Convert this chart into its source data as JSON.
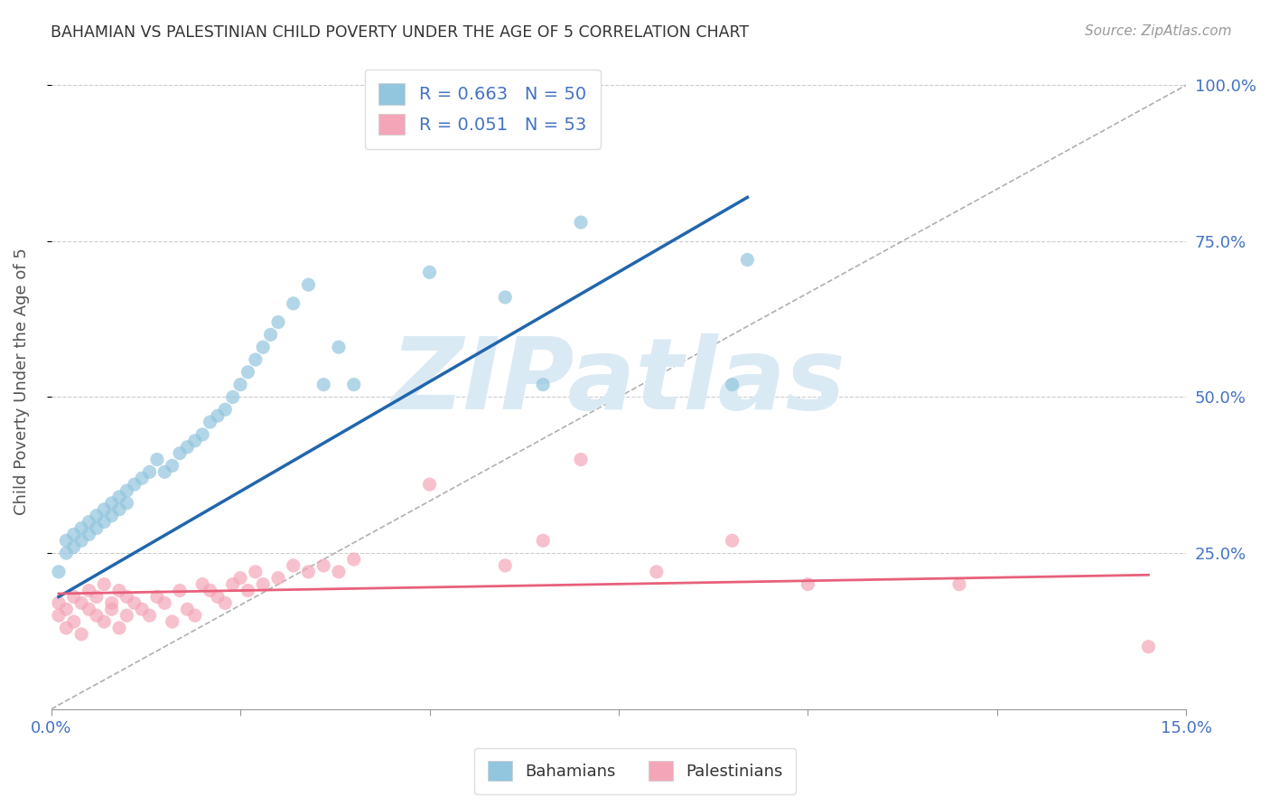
{
  "title": "BAHAMIAN VS PALESTINIAN CHILD POVERTY UNDER THE AGE OF 5 CORRELATION CHART",
  "source": "Source: ZipAtlas.com",
  "ylabel": "Child Poverty Under the Age of 5",
  "xlim": [
    0.0,
    0.15
  ],
  "ylim": [
    0.0,
    1.05
  ],
  "yticks": [
    0.25,
    0.5,
    0.75,
    1.0
  ],
  "ytick_labels": [
    "25.0%",
    "50.0%",
    "75.0%",
    "100.0%"
  ],
  "blue_color": "#92c5de",
  "pink_color": "#f4a6b8",
  "blue_line_color": "#2166ac",
  "pink_line_color": "#e8607a",
  "R_blue": 0.663,
  "N_blue": 50,
  "R_pink": 0.051,
  "N_pink": 53,
  "watermark": "ZIPatlas",
  "watermark_color": "#daeaf5",
  "legend_labels": [
    "Bahamians",
    "Palestinians"
  ],
  "blue_line_x": [
    0.001,
    0.092
  ],
  "blue_line_y": [
    0.18,
    0.82
  ],
  "pink_line_x": [
    0.001,
    0.145
  ],
  "pink_line_y": [
    0.185,
    0.215
  ],
  "bahamians_x": [
    0.001,
    0.002,
    0.002,
    0.003,
    0.003,
    0.004,
    0.004,
    0.005,
    0.005,
    0.006,
    0.006,
    0.007,
    0.007,
    0.008,
    0.008,
    0.009,
    0.009,
    0.01,
    0.01,
    0.011,
    0.012,
    0.013,
    0.014,
    0.015,
    0.016,
    0.017,
    0.018,
    0.019,
    0.02,
    0.021,
    0.022,
    0.023,
    0.024,
    0.025,
    0.026,
    0.027,
    0.028,
    0.029,
    0.03,
    0.032,
    0.034,
    0.036,
    0.038,
    0.04,
    0.05,
    0.06,
    0.065,
    0.07,
    0.09,
    0.092
  ],
  "bahamians_y": [
    0.22,
    0.25,
    0.27,
    0.26,
    0.28,
    0.27,
    0.29,
    0.28,
    0.3,
    0.29,
    0.31,
    0.3,
    0.32,
    0.31,
    0.33,
    0.32,
    0.34,
    0.33,
    0.35,
    0.36,
    0.37,
    0.38,
    0.4,
    0.38,
    0.39,
    0.41,
    0.42,
    0.43,
    0.44,
    0.46,
    0.47,
    0.48,
    0.5,
    0.52,
    0.54,
    0.56,
    0.58,
    0.6,
    0.62,
    0.65,
    0.68,
    0.52,
    0.58,
    0.52,
    0.7,
    0.66,
    0.52,
    0.78,
    0.52,
    0.72
  ],
  "palestinians_x": [
    0.001,
    0.001,
    0.002,
    0.002,
    0.003,
    0.003,
    0.004,
    0.004,
    0.005,
    0.005,
    0.006,
    0.006,
    0.007,
    0.007,
    0.008,
    0.008,
    0.009,
    0.009,
    0.01,
    0.01,
    0.011,
    0.012,
    0.013,
    0.014,
    0.015,
    0.016,
    0.017,
    0.018,
    0.019,
    0.02,
    0.021,
    0.022,
    0.023,
    0.024,
    0.025,
    0.026,
    0.027,
    0.028,
    0.03,
    0.032,
    0.034,
    0.036,
    0.038,
    0.04,
    0.05,
    0.06,
    0.065,
    0.07,
    0.08,
    0.09,
    0.1,
    0.12,
    0.145
  ],
  "palestinians_y": [
    0.17,
    0.15,
    0.16,
    0.13,
    0.18,
    0.14,
    0.17,
    0.12,
    0.16,
    0.19,
    0.15,
    0.18,
    0.14,
    0.2,
    0.16,
    0.17,
    0.13,
    0.19,
    0.15,
    0.18,
    0.17,
    0.16,
    0.15,
    0.18,
    0.17,
    0.14,
    0.19,
    0.16,
    0.15,
    0.2,
    0.19,
    0.18,
    0.17,
    0.2,
    0.21,
    0.19,
    0.22,
    0.2,
    0.21,
    0.23,
    0.22,
    0.23,
    0.22,
    0.24,
    0.36,
    0.23,
    0.27,
    0.4,
    0.22,
    0.27,
    0.2,
    0.2,
    0.1
  ]
}
